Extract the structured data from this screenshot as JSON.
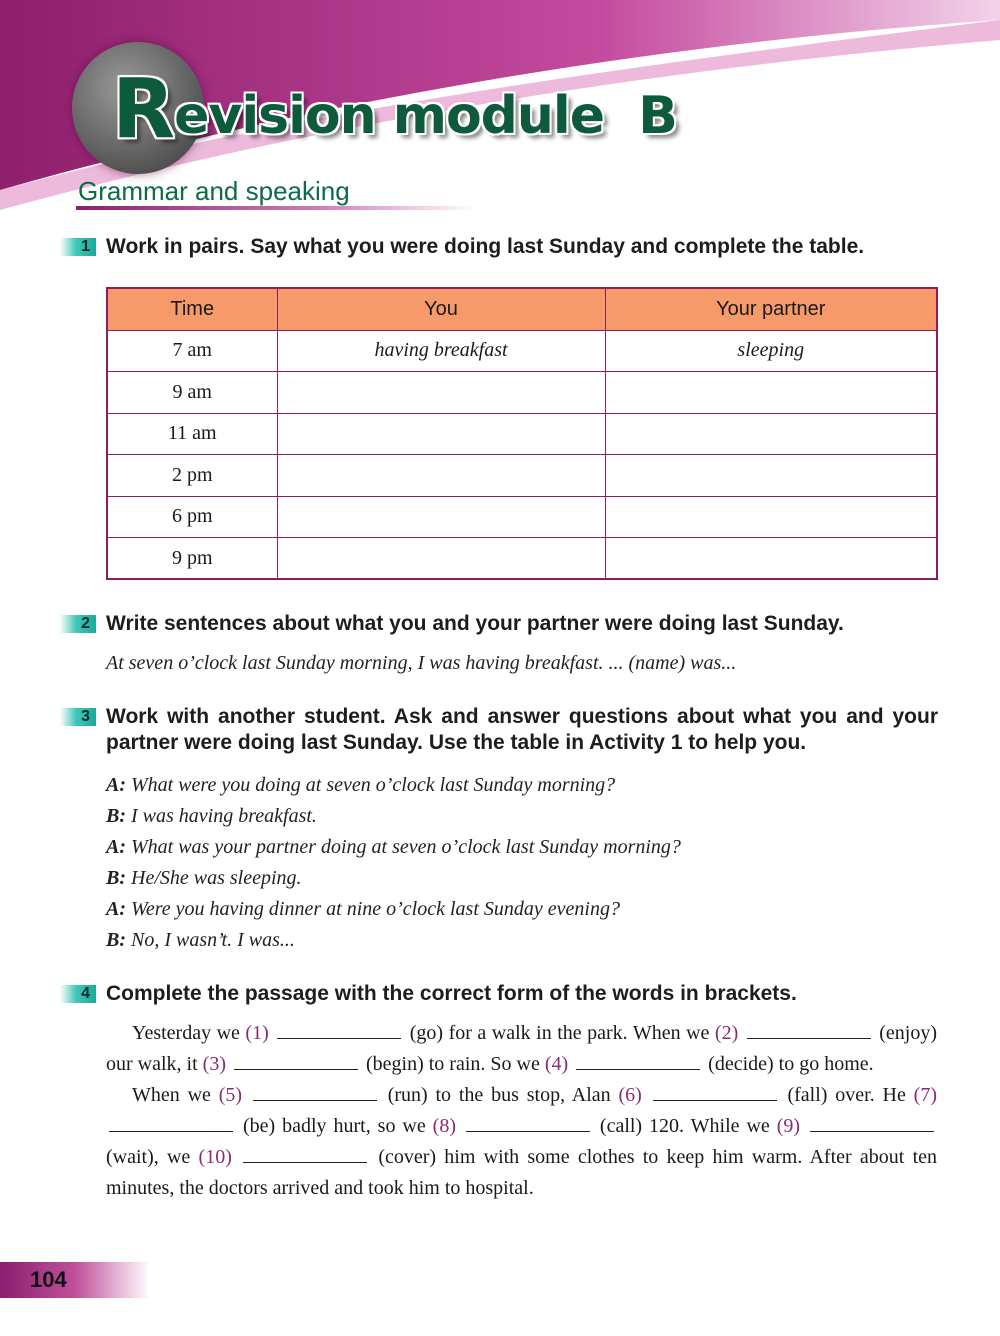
{
  "header": {
    "title_initial": "R",
    "title_rest": "evision module  B",
    "subtitle": "Grammar and speaking"
  },
  "activities": [
    {
      "number": "1",
      "instruction": "Work in pairs. Say what you were doing last Sunday and complete the table."
    },
    {
      "number": "2",
      "instruction": "Write sentences about what you and your partner were doing last Sunday.",
      "example": "At seven o’clock last Sunday morning, I was having breakfast. ... (name) was..."
    },
    {
      "number": "3",
      "instruction": "Work with another student. Ask and answer questions about what you and your partner were doing last Sunday. Use the table in Activity 1 to help you.",
      "dialogue": [
        {
          "speaker": "A:",
          "line": "What were you doing at seven o’clock last Sunday morning?"
        },
        {
          "speaker": "B:",
          "line": "I was having breakfast."
        },
        {
          "speaker": "A:",
          "line": "What was your partner doing at seven o’clock last Sunday morning?"
        },
        {
          "speaker": "B:",
          "line": "He/She was sleeping."
        },
        {
          "speaker": "A:",
          "line": "Were you having dinner at nine o’clock last Sunday evening?"
        },
        {
          "speaker": "B:",
          "line": "No, I wasn’t. I was..."
        }
      ]
    },
    {
      "number": "4",
      "instruction": "Complete the passage with the correct form of the words in brackets."
    }
  ],
  "table": {
    "headers": [
      "Time",
      "You",
      "Your partner"
    ],
    "rows": [
      [
        "7 am",
        "having breakfast",
        "sleeping"
      ],
      [
        "9 am",
        "",
        ""
      ],
      [
        "11 am",
        "",
        ""
      ],
      [
        "2 pm",
        "",
        ""
      ],
      [
        "6 pm",
        "",
        ""
      ],
      [
        "9 pm",
        "",
        ""
      ]
    ]
  },
  "passage": [
    [
      {
        "t": "Yesterday we "
      },
      {
        "n": "(1)"
      },
      {
        "t": " (go) for a walk in the park. When we "
      },
      {
        "n": "(2)"
      },
      {
        "t": " (enjoy) our walk, it "
      },
      {
        "n": "(3)"
      },
      {
        "t": " (begin) to rain. So we "
      },
      {
        "n": "(4)"
      },
      {
        "t": " (decide) to go home."
      }
    ],
    [
      {
        "t": "When we "
      },
      {
        "n": "(5)"
      },
      {
        "t": " (run) to the bus stop, Alan "
      },
      {
        "n": "(6)"
      },
      {
        "t": " (fall) over. He "
      },
      {
        "n": "(7)"
      },
      {
        "t": " (be) badly hurt, so we "
      },
      {
        "n": "(8)"
      },
      {
        "t": " (call) 120. While we "
      },
      {
        "n": "(9)"
      },
      {
        "t": " (wait), we "
      },
      {
        "n": "(10)"
      },
      {
        "t": " (cover) him with some clothes to keep him warm. After about ten minutes, the doctors arrived and took him to hospital."
      }
    ]
  ],
  "footer": {
    "page_number": "104"
  },
  "colors": {
    "title_green": "#0d5a3c",
    "accent_purple": "#8b1f5e",
    "table_header": "#f79a6a",
    "badge_teal": "#1aa99a"
  }
}
